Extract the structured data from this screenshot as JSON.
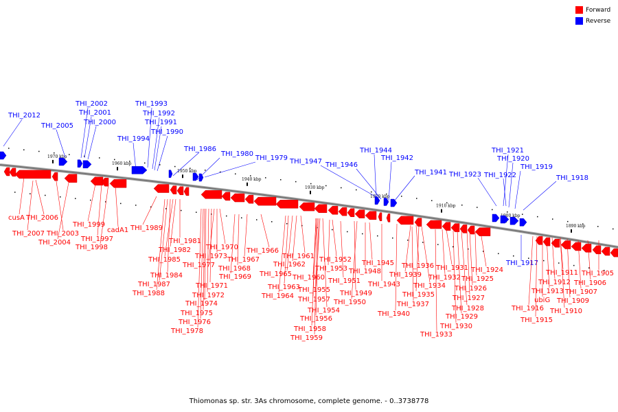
{
  "legend": [
    {
      "label": "Forward",
      "color": "#ff0000"
    },
    {
      "label": "Reverse",
      "color": "#0000ff"
    }
  ],
  "caption": "Thiomonas sp. str. 3As chromosome, complete genome. - 0..3738778",
  "colors": {
    "forward": "#ff0000",
    "reverse": "#0000ff",
    "axis": "#777777"
  },
  "ticks": [
    "1970 kbp",
    "1960 kbp",
    "1950 kbp",
    "1940 kbp",
    "1930 kbp",
    "1920 kbp",
    "1910 kbp",
    "1900 kbp",
    "1890 kbp"
  ],
  "reverse_labels": [
    "THI_2012",
    "THI_2005",
    "THI_2002",
    "THI_2001",
    "THI_2000",
    "THI_1994",
    "THI_1993",
    "THI_1992",
    "THI_1991",
    "THI_1990",
    "THI_1986",
    "THI_1980",
    "THI_1979",
    "THI_1947",
    "THI_1946",
    "THI_1944",
    "THI_1942",
    "THI_1941",
    "THI_1923",
    "THI_1922",
    "THI_1921",
    "THI_1920",
    "THI_1919",
    "THI_1918",
    "THI_1917"
  ],
  "forward_labels": [
    "cusA",
    "THI_2006",
    "THI_2007",
    "THI_2003",
    "THI_2004",
    "THI_1999",
    "THI_1997",
    "THI_1998",
    "cadA1",
    "THI_1989",
    "THI_1981",
    "THI_1982",
    "THI_1985",
    "THI_1984",
    "THI_1987",
    "THI_1988",
    "THI_1970",
    "THI_1973",
    "THI_1977",
    "THI_1971",
    "THI_1972",
    "THI_1974",
    "THI_1975",
    "THI_1976",
    "THI_1978",
    "THI_1966",
    "THI_1967",
    "THI_1968",
    "THI_1969",
    "THI_1961",
    "THI_1962",
    "THI_1965",
    "THI_1963",
    "THI_1964",
    "THI_1960",
    "THI_1955",
    "THI_1957",
    "THI_1954",
    "THI_1956",
    "THI_1958",
    "THI_1959",
    "THI_1952",
    "THI_1953",
    "THI_1951",
    "THI_1949",
    "THI_1950",
    "THI_1945",
    "THI_1948",
    "THI_1943",
    "THI_1940",
    "THI_1936",
    "THI_1939",
    "THI_1934",
    "THI_1935",
    "THI_1937",
    "THI_1931",
    "THI_1932",
    "THI_1933",
    "THI_1930",
    "THI_1929",
    "THI_1928",
    "THI_1927",
    "THI_1926",
    "THI_1925",
    "THI_1924",
    "THI_1916",
    "ubiG",
    "THI_1915",
    "THI_1913",
    "THI_1912",
    "THI_1911",
    "THI_1910",
    "THI_1909",
    "THI_1907",
    "THI_1906",
    "THI_1905"
  ]
}
